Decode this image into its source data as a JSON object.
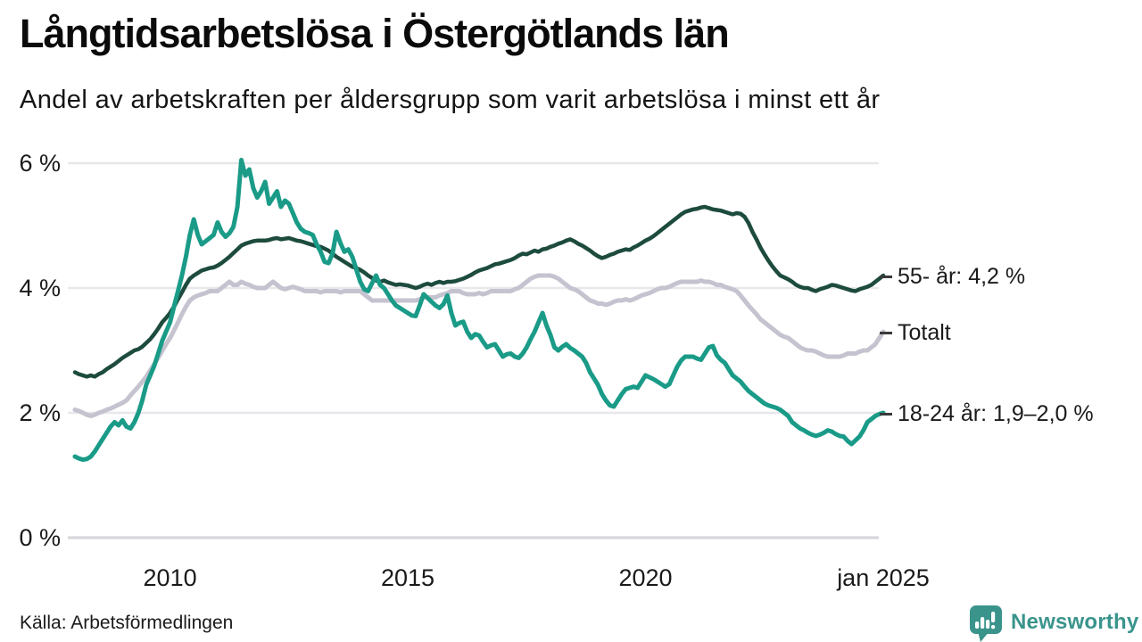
{
  "header": {
    "title": "Långtidsarbetslösa i Östergötlands län",
    "subtitle": "Andel av arbetskraften per åldersgrupp som varit arbetslösa i minst ett år"
  },
  "chart_data": {
    "type": "line",
    "title": "Långtidsarbetslösa i Östergötlands län",
    "subtitle": "Andel av arbetskraften per åldersgrupp som varit arbetslösa i minst ett år",
    "unit": "% av arbetskraften",
    "x_start": "2008-01",
    "x_end": "2025-01",
    "frequency": "monthly",
    "grid": true,
    "legend_position": "right-end-labels",
    "ylim": [
      0,
      6.4
    ],
    "yticks": [
      {
        "value": 0,
        "label": "0 %"
      },
      {
        "value": 2,
        "label": "2 %"
      },
      {
        "value": 4,
        "label": "4 %"
      },
      {
        "value": 6,
        "label": "6 %"
      }
    ],
    "xticks": [
      {
        "month_index": 24,
        "label": "2010"
      },
      {
        "month_index": 84,
        "label": "2015"
      },
      {
        "month_index": 144,
        "label": "2020"
      },
      {
        "month_index": 204,
        "label": "jan 2025"
      }
    ],
    "colors": {
      "55_ar": "#1d4b3e",
      "totalt": "#c4c3cf",
      "18_24_ar": "#1a9b88",
      "gridline": "#e8e7eb",
      "zeroline": "#d8d7dc"
    },
    "series": [
      {
        "name": "55- år",
        "end_label": "55- år: 4,2 %",
        "color": "#1d4b3e",
        "width": 4.5,
        "values": [
          2.65,
          2.62,
          2.6,
          2.58,
          2.6,
          2.58,
          2.62,
          2.65,
          2.7,
          2.74,
          2.78,
          2.83,
          2.88,
          2.92,
          2.96,
          3.0,
          3.02,
          3.06,
          3.12,
          3.18,
          3.26,
          3.35,
          3.45,
          3.52,
          3.6,
          3.7,
          3.82,
          3.93,
          4.05,
          4.15,
          4.2,
          4.24,
          4.28,
          4.3,
          4.32,
          4.33,
          4.36,
          4.4,
          4.45,
          4.5,
          4.56,
          4.62,
          4.68,
          4.71,
          4.73,
          4.75,
          4.76,
          4.76,
          4.76,
          4.77,
          4.79,
          4.8,
          4.78,
          4.79,
          4.8,
          4.78,
          4.76,
          4.75,
          4.73,
          4.71,
          4.69,
          4.67,
          4.66,
          4.63,
          4.6,
          4.55,
          4.5,
          4.46,
          4.42,
          4.38,
          4.34,
          4.32,
          4.29,
          4.25,
          4.2,
          4.16,
          4.12,
          4.1,
          4.12,
          4.09,
          4.07,
          4.05,
          4.06,
          4.05,
          4.04,
          4.02,
          4.0,
          4.02,
          4.05,
          4.07,
          4.05,
          4.08,
          4.1,
          4.08,
          4.1,
          4.1,
          4.11,
          4.13,
          4.15,
          4.18,
          4.21,
          4.25,
          4.28,
          4.3,
          4.32,
          4.35,
          4.38,
          4.39,
          4.41,
          4.43,
          4.45,
          4.48,
          4.52,
          4.55,
          4.54,
          4.57,
          4.6,
          4.58,
          4.62,
          4.63,
          4.66,
          4.68,
          4.71,
          4.73,
          4.76,
          4.78,
          4.75,
          4.71,
          4.68,
          4.64,
          4.6,
          4.55,
          4.51,
          4.48,
          4.5,
          4.53,
          4.55,
          4.58,
          4.6,
          4.62,
          4.61,
          4.65,
          4.68,
          4.72,
          4.76,
          4.79,
          4.83,
          4.88,
          4.93,
          4.98,
          5.03,
          5.08,
          5.13,
          5.18,
          5.22,
          5.24,
          5.26,
          5.27,
          5.29,
          5.3,
          5.28,
          5.26,
          5.25,
          5.24,
          5.22,
          5.2,
          5.18,
          5.2,
          5.19,
          5.14,
          5.04,
          4.9,
          4.78,
          4.65,
          4.54,
          4.44,
          4.35,
          4.27,
          4.2,
          4.17,
          4.14,
          4.1,
          4.05,
          4.02,
          4.0,
          4.0,
          3.97,
          3.95,
          3.98,
          4.0,
          4.02,
          4.05,
          4.04,
          4.02,
          4.0,
          3.98,
          3.96,
          3.95,
          3.98,
          4.0,
          4.02,
          4.05,
          4.1,
          4.15,
          4.2
        ]
      },
      {
        "name": "Totalt",
        "end_label": "Totalt",
        "color": "#c4c3cf",
        "width": 5,
        "values": [
          2.05,
          2.03,
          2.0,
          1.97,
          1.95,
          1.97,
          2.0,
          2.02,
          2.05,
          2.07,
          2.1,
          2.13,
          2.16,
          2.2,
          2.28,
          2.35,
          2.42,
          2.5,
          2.58,
          2.68,
          2.78,
          2.88,
          2.99,
          3.1,
          3.2,
          3.32,
          3.45,
          3.58,
          3.7,
          3.8,
          3.85,
          3.88,
          3.9,
          3.92,
          3.95,
          3.95,
          3.95,
          4.0,
          4.05,
          4.1,
          4.05,
          4.05,
          4.1,
          4.07,
          4.05,
          4.02,
          4.0,
          4.0,
          4.0,
          4.05,
          4.1,
          4.05,
          4.0,
          3.98,
          4.0,
          4.02,
          4.0,
          3.98,
          3.95,
          3.95,
          3.95,
          3.95,
          3.93,
          3.95,
          3.95,
          3.95,
          3.95,
          3.93,
          3.95,
          3.95,
          3.95,
          3.95,
          3.95,
          3.9,
          3.85,
          3.8,
          3.8,
          3.8,
          3.8,
          3.8,
          3.8,
          3.8,
          3.8,
          3.8,
          3.8,
          3.8,
          3.8,
          3.82,
          3.85,
          3.85,
          3.85,
          3.85,
          3.88,
          3.9,
          3.92,
          3.95,
          3.95,
          3.95,
          3.92,
          3.9,
          3.9,
          3.9,
          3.92,
          3.9,
          3.92,
          3.95,
          3.95,
          3.95,
          3.95,
          3.95,
          3.95,
          3.98,
          4.0,
          4.05,
          4.1,
          4.15,
          4.18,
          4.2,
          4.2,
          4.2,
          4.2,
          4.18,
          4.15,
          4.1,
          4.05,
          4.0,
          3.98,
          3.95,
          3.9,
          3.85,
          3.8,
          3.78,
          3.75,
          3.75,
          3.73,
          3.75,
          3.78,
          3.8,
          3.8,
          3.82,
          3.8,
          3.82,
          3.85,
          3.88,
          3.9,
          3.92,
          3.95,
          3.98,
          4.0,
          4.0,
          4.02,
          4.05,
          4.08,
          4.1,
          4.1,
          4.1,
          4.1,
          4.1,
          4.12,
          4.1,
          4.1,
          4.08,
          4.05,
          4.05,
          4.02,
          4.0,
          3.98,
          3.95,
          3.88,
          3.8,
          3.72,
          3.65,
          3.58,
          3.5,
          3.45,
          3.4,
          3.35,
          3.3,
          3.25,
          3.22,
          3.2,
          3.15,
          3.1,
          3.05,
          3.02,
          3.0,
          3.0,
          2.98,
          2.95,
          2.92,
          2.9,
          2.9,
          2.9,
          2.9,
          2.92,
          2.95,
          2.95,
          2.95,
          2.98,
          3.0,
          3.0,
          3.05,
          3.1,
          3.2,
          3.3
        ]
      },
      {
        "name": "18-24 år",
        "end_label": "18-24 år: 1,9–2,0 %",
        "color": "#1a9b88",
        "width": 5,
        "values": [
          1.3,
          1.27,
          1.25,
          1.26,
          1.3,
          1.38,
          1.48,
          1.58,
          1.68,
          1.78,
          1.85,
          1.8,
          1.88,
          1.78,
          1.75,
          1.85,
          2.0,
          2.2,
          2.45,
          2.6,
          2.75,
          2.95,
          3.15,
          3.3,
          3.45,
          3.7,
          3.95,
          4.2,
          4.5,
          4.85,
          5.1,
          4.85,
          4.7,
          4.75,
          4.8,
          4.85,
          5.05,
          4.9,
          4.82,
          4.88,
          4.98,
          5.3,
          6.05,
          5.8,
          5.9,
          5.6,
          5.45,
          5.55,
          5.7,
          5.35,
          5.45,
          5.55,
          5.3,
          5.4,
          5.35,
          5.2,
          5.05,
          4.95,
          4.9,
          4.88,
          4.85,
          4.7,
          4.58,
          4.42,
          4.4,
          4.55,
          4.9,
          4.72,
          4.58,
          4.62,
          4.5,
          4.3,
          4.1,
          3.98,
          3.95,
          4.08,
          4.2,
          4.05,
          4.0,
          3.9,
          3.8,
          3.72,
          3.68,
          3.64,
          3.6,
          3.56,
          3.55,
          3.72,
          3.9,
          3.84,
          3.78,
          3.72,
          3.68,
          3.74,
          3.88,
          3.6,
          3.4,
          3.44,
          3.46,
          3.3,
          3.2,
          3.26,
          3.24,
          3.14,
          3.05,
          3.08,
          3.1,
          3.0,
          2.9,
          2.94,
          2.95,
          2.9,
          2.88,
          2.95,
          3.05,
          3.18,
          3.3,
          3.45,
          3.6,
          3.4,
          3.25,
          3.05,
          3.0,
          3.06,
          3.1,
          3.04,
          3.0,
          2.95,
          2.9,
          2.8,
          2.65,
          2.55,
          2.45,
          2.3,
          2.2,
          2.12,
          2.1,
          2.2,
          2.3,
          2.38,
          2.4,
          2.42,
          2.4,
          2.5,
          2.6,
          2.57,
          2.54,
          2.5,
          2.46,
          2.42,
          2.46,
          2.6,
          2.74,
          2.84,
          2.9,
          2.9,
          2.9,
          2.87,
          2.85,
          2.95,
          3.05,
          3.07,
          2.92,
          2.85,
          2.8,
          2.7,
          2.6,
          2.55,
          2.5,
          2.42,
          2.35,
          2.3,
          2.25,
          2.2,
          2.15,
          2.12,
          2.1,
          2.08,
          2.05,
          2.0,
          1.95,
          1.85,
          1.8,
          1.75,
          1.72,
          1.68,
          1.65,
          1.63,
          1.65,
          1.68,
          1.72,
          1.7,
          1.66,
          1.63,
          1.62,
          1.55,
          1.5,
          1.56,
          1.62,
          1.72,
          1.85,
          1.9,
          1.95,
          1.98,
          2.0
        ]
      }
    ]
  },
  "footer": {
    "source": "Källa: Arbetsförmedlingen",
    "brand": "Newsworthy",
    "brand_color": "#3a948c",
    "brand_icon": "speech-bubble-bar-chart-icon"
  }
}
